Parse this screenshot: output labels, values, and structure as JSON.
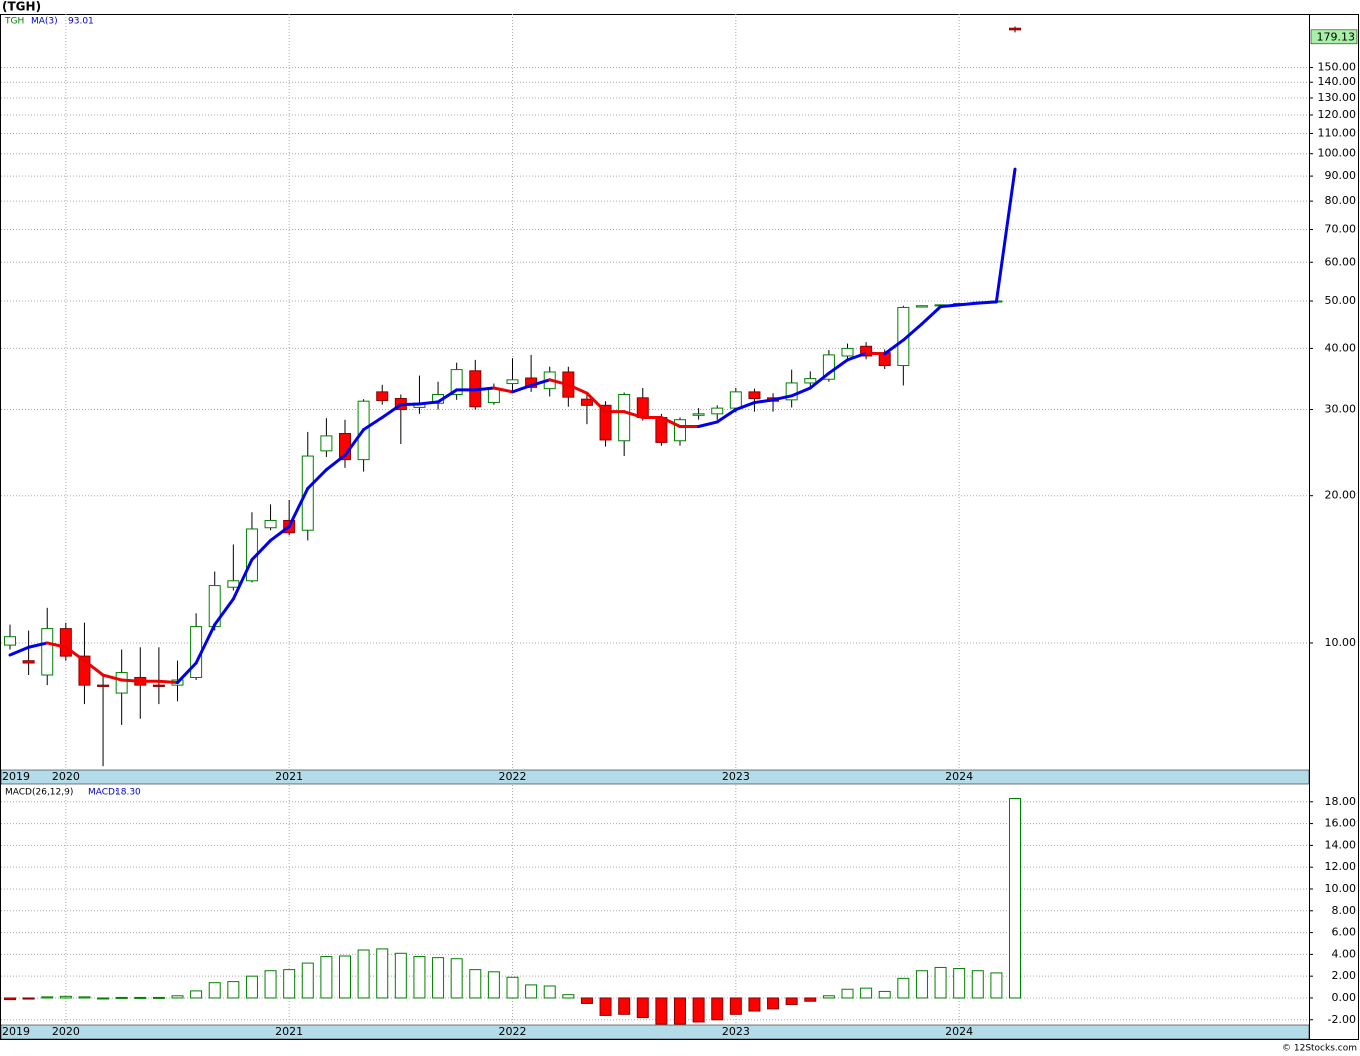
{
  "chart_data": {
    "type": "candlestick",
    "title": "(TGH)",
    "categories": [
      "2019",
      null,
      null,
      "2020",
      null,
      null,
      null,
      null,
      null,
      null,
      null,
      null,
      null,
      null,
      null,
      "2021",
      null,
      null,
      null,
      null,
      null,
      null,
      null,
      null,
      null,
      null,
      null,
      "2022",
      null,
      null,
      null,
      null,
      null,
      null,
      null,
      null,
      null,
      null,
      null,
      "2023",
      null,
      null,
      null,
      null,
      null,
      null,
      null,
      null,
      null,
      null,
      null,
      "2024",
      null,
      null,
      null
    ],
    "series": [
      {
        "name": "TGH",
        "color_up": "#008000",
        "color_down": "#ff0000",
        "open": [
          9.9,
          9.2,
          8.6,
          10.7,
          9.4,
          8.2,
          7.9,
          8.5,
          8.2,
          8.2,
          8.5,
          10.8,
          13.0,
          13.4,
          17.2,
          17.8,
          17.0,
          24.7,
          26.8,
          23.7,
          32.6,
          31.6,
          30.3,
          30.9,
          32.2,
          36.0,
          31.0,
          33.9,
          34.8,
          33.1,
          35.8,
          31.5,
          30.6,
          25.9,
          31.7,
          28.9,
          25.9,
          29.2,
          29.4,
          30.2,
          32.6,
          31.7,
          31.4,
          34.0,
          34.6,
          38.6,
          40.4,
          39.2,
          36.9,
          48.6,
          49.0,
          49.3,
          49.6,
          49.9,
          180.5
        ],
        "high": [
          10.9,
          10.6,
          11.8,
          11.0,
          11.0,
          8.6,
          9.7,
          9.8,
          9.8,
          9.2,
          11.5,
          14.0,
          15.9,
          18.5,
          19.2,
          19.6,
          27.0,
          28.8,
          28.6,
          31.5,
          33.7,
          32.2,
          35.2,
          34.2,
          37.4,
          37.9,
          33.9,
          38.2,
          38.8,
          36.7,
          36.7,
          32.3,
          31.2,
          32.5,
          33.2,
          29.4,
          28.9,
          30.2,
          30.6,
          33.2,
          33.1,
          32.4,
          36.2,
          35.9,
          39.7,
          40.9,
          41.2,
          39.8,
          48.9,
          49.0,
          49.2,
          49.5,
          49.8,
          50.1,
          182
        ],
        "low": [
          9.7,
          8.6,
          8.2,
          9.2,
          7.5,
          5.6,
          6.8,
          7.0,
          7.5,
          7.6,
          8.4,
          10.6,
          12.8,
          13.3,
          17.0,
          16.6,
          16.2,
          24.0,
          22.8,
          22.4,
          30.7,
          25.5,
          29.4,
          30.0,
          31.4,
          30.0,
          30.7,
          32.6,
          32.6,
          31.9,
          30.4,
          28.0,
          25.2,
          24.1,
          28.5,
          25.3,
          25.3,
          28.6,
          28.6,
          29.6,
          29.7,
          29.7,
          30.3,
          33.0,
          34.2,
          38.0,
          38.0,
          36.3,
          33.6,
          48.5,
          48.9,
          49.2,
          49.5,
          49.8,
          177
        ],
        "close": [
          10.3,
          9.1,
          10.7,
          9.4,
          8.2,
          8.15,
          8.7,
          8.2,
          8.15,
          8.4,
          10.8,
          13.1,
          13.4,
          17.1,
          17.8,
          16.8,
          24.1,
          26.5,
          23.7,
          31.2,
          31.3,
          30.0,
          30.9,
          32.2,
          36.2,
          30.4,
          33.1,
          34.5,
          33.3,
          35.8,
          31.8,
          30.6,
          26.0,
          32.2,
          28.9,
          25.7,
          28.6,
          29.4,
          30.2,
          32.6,
          31.6,
          31.2,
          34.0,
          34.7,
          38.8,
          40.0,
          38.6,
          36.9,
          48.5,
          48.9,
          49.1,
          49.4,
          49.7,
          50.0,
          179.13
        ]
      }
    ],
    "ma": {
      "name": "MA(3)",
      "color_up": "#0000ee",
      "color_down": "#ee0000",
      "values": [
        9.45,
        9.8,
        10.0,
        9.8,
        9.2,
        8.6,
        8.4,
        8.35,
        8.35,
        8.3,
        9.1,
        10.9,
        12.3,
        14.8,
        16.2,
        17.3,
        20.7,
        22.6,
        24.2,
        27.3,
        28.9,
        30.7,
        30.8,
        31.1,
        32.9,
        32.9,
        33.2,
        32.6,
        33.6,
        34.5,
        33.7,
        32.4,
        29.7,
        29.7,
        28.9,
        28.9,
        27.7,
        27.7,
        28.3,
        30.0,
        31.0,
        31.4,
        32.0,
        33.2,
        35.6,
        37.9,
        39.1,
        39.0,
        41.6,
        44.9,
        48.7,
        49.1,
        49.5,
        49.8,
        93.01
      ]
    },
    "log_scale": true,
    "grid": true,
    "ylim": [
      5.5,
      193
    ],
    "yticks": [
      {
        "value": 10,
        "label": "10.00"
      },
      {
        "value": 20,
        "label": "20.00"
      },
      {
        "value": 30,
        "label": "30.00"
      },
      {
        "value": 40,
        "label": "40.00"
      },
      {
        "value": 50,
        "label": "50.00"
      },
      {
        "value": 60,
        "label": "60.00"
      },
      {
        "value": 70,
        "label": "70.00"
      },
      {
        "value": 80,
        "label": "80.00"
      },
      {
        "value": 90,
        "label": "90.00"
      },
      {
        "value": 100,
        "label": "100.00"
      },
      {
        "value": 110,
        "label": "110.00"
      },
      {
        "value": 120,
        "label": "120.00"
      },
      {
        "value": 130,
        "label": "130.00"
      },
      {
        "value": 140,
        "label": "140.00"
      },
      {
        "value": 150,
        "label": "150.00"
      }
    ],
    "macd": {
      "name": "MACD(26,12,9)",
      "value_name": "MACD:",
      "last_label": "18.30",
      "values": [
        -0.15,
        -0.1,
        0.1,
        0.15,
        0.1,
        0.0,
        0.05,
        0.05,
        0.05,
        0.2,
        0.65,
        1.4,
        1.5,
        2.0,
        2.5,
        2.6,
        3.2,
        3.8,
        3.85,
        4.4,
        4.5,
        4.1,
        3.8,
        3.7,
        3.6,
        2.6,
        2.4,
        1.9,
        1.2,
        1.1,
        0.3,
        -0.5,
        -1.6,
        -1.5,
        -1.8,
        -2.4,
        -2.4,
        -2.2,
        -2.0,
        -1.5,
        -1.2,
        -1.0,
        -0.6,
        -0.3,
        0.2,
        0.8,
        0.9,
        0.6,
        1.8,
        2.5,
        2.8,
        2.7,
        2.5,
        2.3,
        18.3
      ],
      "ylim": [
        -2.48,
        19.54
      ],
      "yticks": [
        {
          "value": -2,
          "label": "-2.00"
        },
        {
          "value": 0,
          "label": "0.00"
        },
        {
          "value": 2,
          "label": "2.00"
        },
        {
          "value": 4,
          "label": "4.00"
        },
        {
          "value": 6,
          "label": "6.00"
        },
        {
          "value": 8,
          "label": "8.00"
        },
        {
          "value": 10,
          "label": "10.00"
        },
        {
          "value": 12,
          "label": "12.00"
        },
        {
          "value": 14,
          "label": "14.00"
        },
        {
          "value": 16,
          "label": "16.00"
        },
        {
          "value": 18,
          "label": "18.00"
        }
      ]
    },
    "footer": "© 12Stocks.com"
  }
}
